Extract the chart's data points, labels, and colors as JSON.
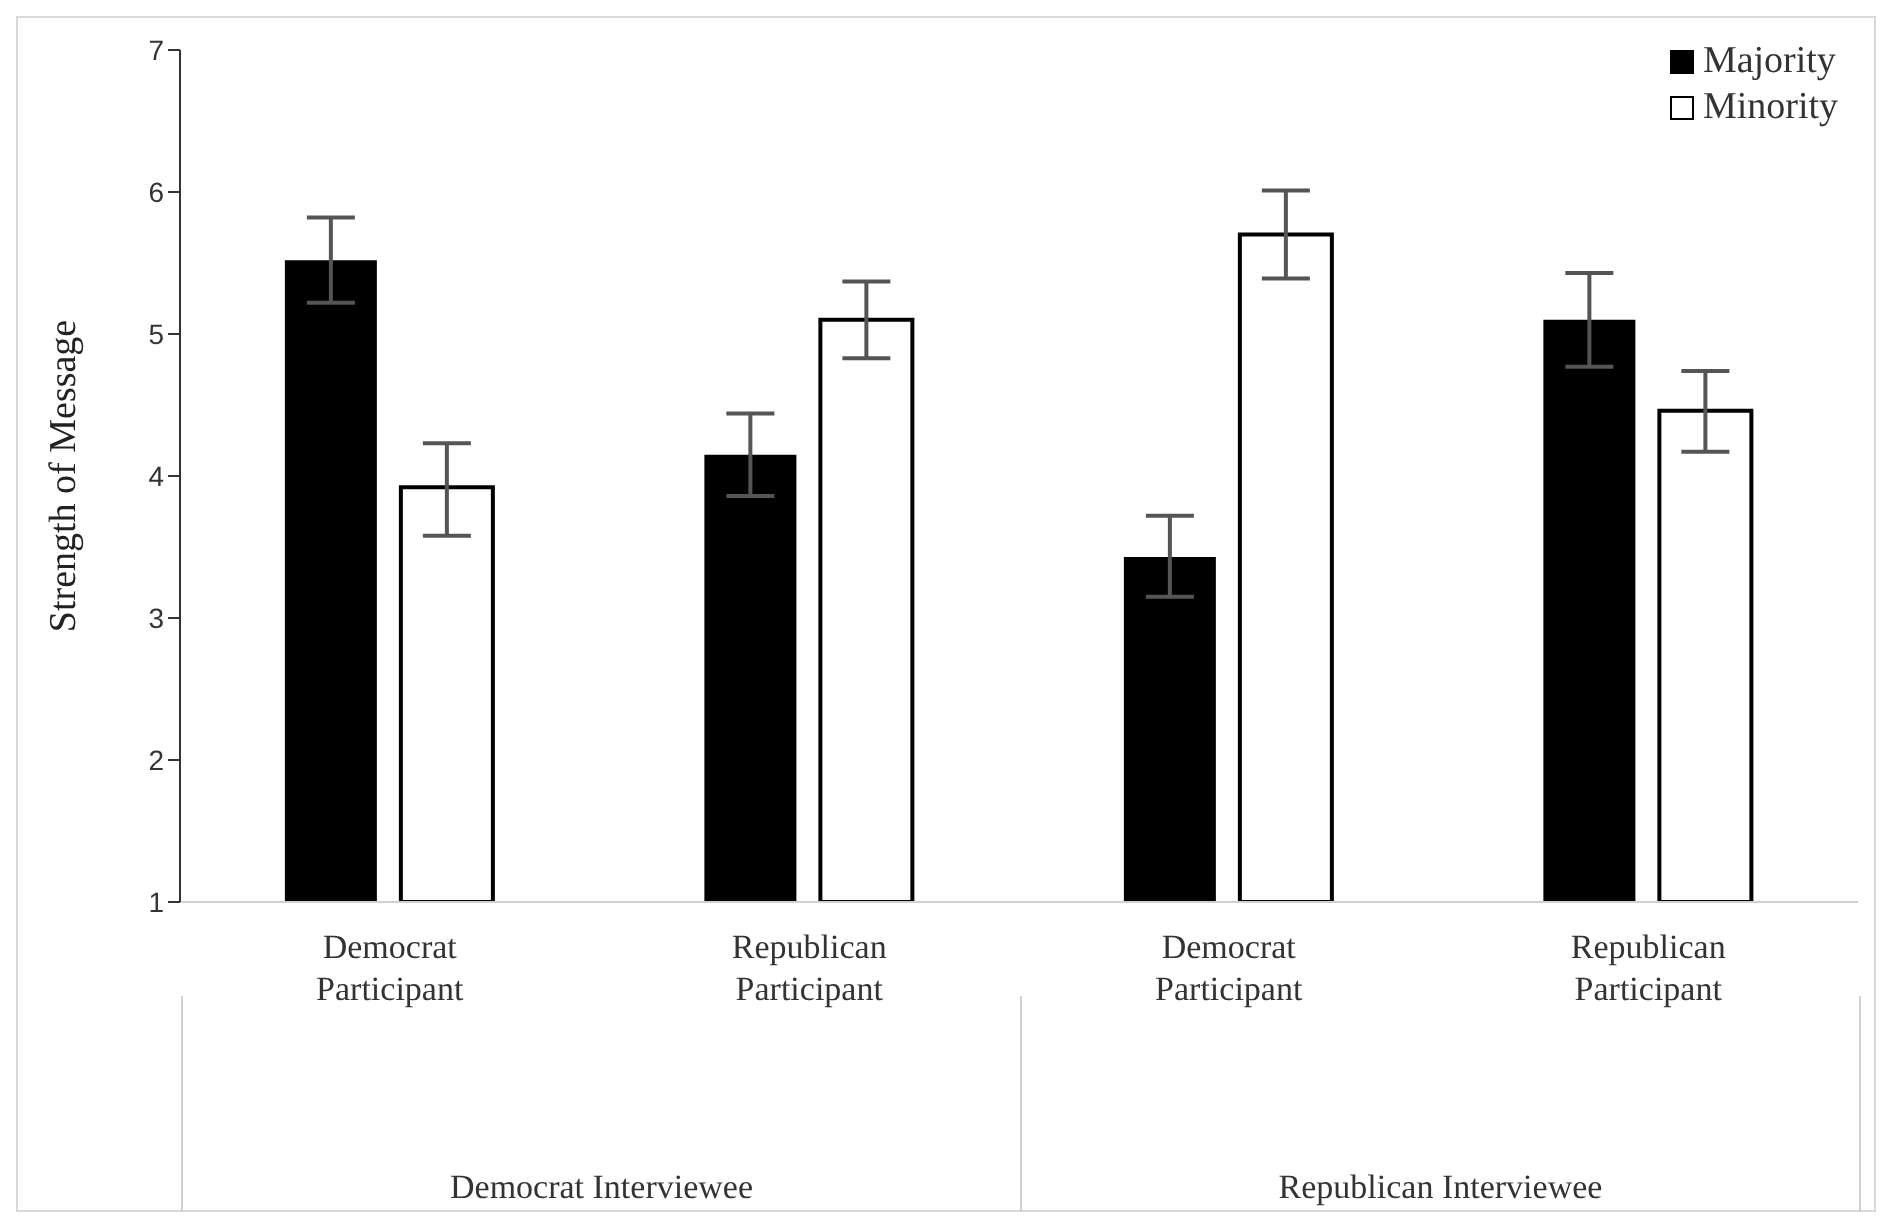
{
  "chart_data": {
    "type": "bar",
    "ylabel": "Strength of Message",
    "categories": [
      "Democrat Participant",
      "Republican Participant",
      "Democrat Participant",
      "Republican Participant"
    ],
    "series": [
      {
        "name": "Majority",
        "color": "#000000",
        "values": [
          5.52,
          4.15,
          3.43,
          5.1
        ],
        "errors": [
          [
            5.22,
            5.82
          ],
          [
            3.86,
            4.44
          ],
          [
            3.15,
            3.72
          ],
          [
            4.77,
            5.43
          ]
        ]
      },
      {
        "name": "Minority",
        "color": "#ffffff",
        "values": [
          3.92,
          5.1,
          5.7,
          4.46
        ],
        "errors": [
          [
            3.58,
            4.23
          ],
          [
            4.83,
            5.37
          ],
          [
            5.39,
            6.01
          ],
          [
            4.17,
            4.74
          ]
        ]
      }
    ],
    "annotations": [
      "Democrat Interviewee",
      "Republican Interviewee"
    ],
    "ylim": [
      1,
      7
    ],
    "yticks": [
      1,
      2,
      3,
      4,
      5,
      6,
      7
    ],
    "legend": "top right"
  }
}
